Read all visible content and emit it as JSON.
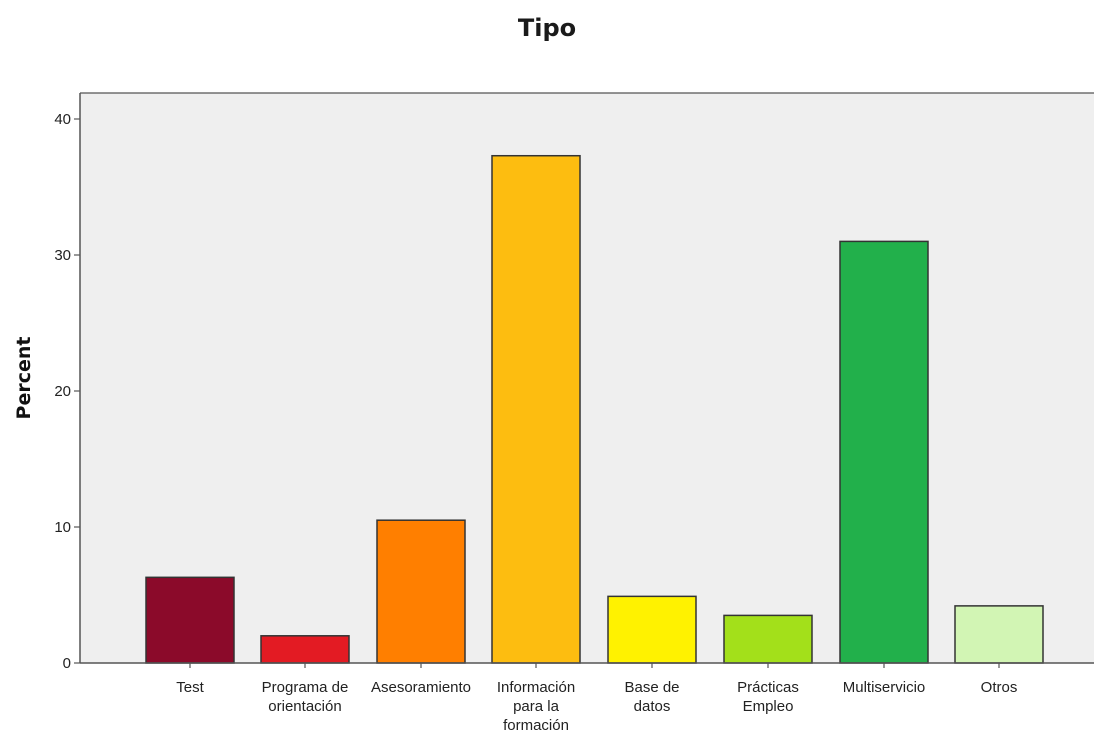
{
  "chart_data": {
    "type": "bar",
    "title": "Tipo",
    "xlabel": "",
    "ylabel": "Percent",
    "ylim": [
      0,
      42
    ],
    "yticks": [
      0,
      10,
      20,
      30,
      40
    ],
    "grid": false,
    "categories": [
      [
        "Test"
      ],
      [
        "Programa de",
        "orientación"
      ],
      [
        "Asesoramiento"
      ],
      [
        "Información",
        "para la",
        "formación"
      ],
      [
        "Base de",
        "datos"
      ],
      [
        "Prácticas",
        "Empleo"
      ],
      [
        "Multiservicio"
      ],
      [
        "Otros"
      ]
    ],
    "values": [
      6.3,
      2.0,
      10.5,
      37.3,
      4.9,
      3.5,
      31.0,
      4.2
    ],
    "colors": [
      "#8b0a2a",
      "#e31b23",
      "#ff7f00",
      "#fdbd10",
      "#fff200",
      "#a3e01a",
      "#22b04b",
      "#d2f5b4"
    ],
    "plot_background": "#efefef"
  }
}
